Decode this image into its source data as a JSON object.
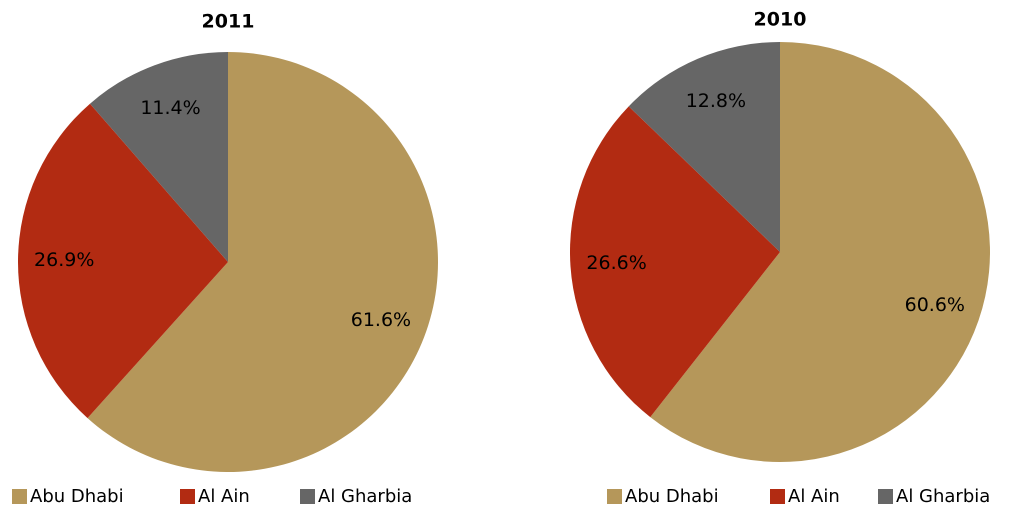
{
  "chart_data": [
    {
      "type": "pie",
      "title": "2011",
      "categories": [
        "Abu Dhabi",
        "Al Ain",
        "Al Gharbia"
      ],
      "values": [
        61.6,
        26.9,
        11.4
      ],
      "value_labels": [
        "61.6%",
        "26.9%",
        "11.4%"
      ],
      "colors": [
        "#b5975a",
        "#b22b12",
        "#666666"
      ],
      "legend": "bottom"
    },
    {
      "type": "pie",
      "title": "2010",
      "categories": [
        "Abu Dhabi",
        "Al Ain",
        "Al Gharbia"
      ],
      "values": [
        60.6,
        26.6,
        12.8
      ],
      "value_labels": [
        "60.6%",
        "26.6%",
        "12.8%"
      ],
      "colors": [
        "#b5975a",
        "#b22b12",
        "#666666"
      ],
      "legend": "bottom"
    }
  ]
}
